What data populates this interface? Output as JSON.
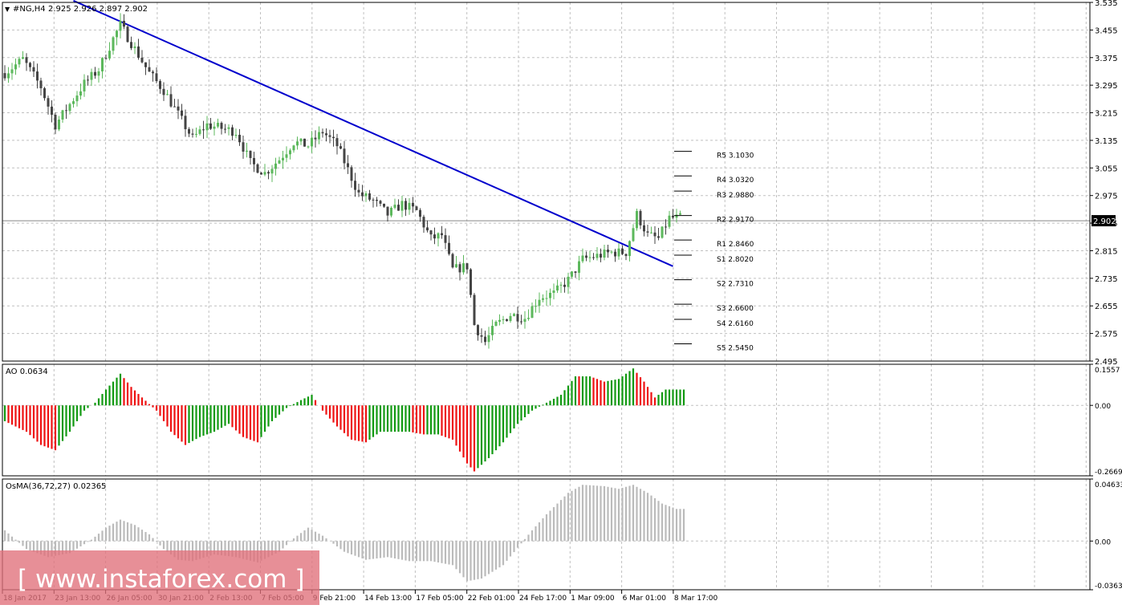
{
  "header": {
    "symbol_label": "#NG,H4",
    "ohlc_text": "2.925 2.926 2.897 2.902"
  },
  "watermark": {
    "text": "[ www.instaforex.com ]"
  },
  "colors": {
    "grid": "#c0c0c0",
    "trendline": "#0000cc",
    "bull": "#5cb85c",
    "bear": "#444444",
    "ao_up": "#119911",
    "ao_down": "#ee1111",
    "osma": "#bbbbbb",
    "watermark_bg": "#e0707a"
  },
  "chart_data": [
    {
      "type": "candlestick",
      "name": "price",
      "ylim": [
        2.495,
        3.535
      ],
      "y_ticks": [
        "3.535",
        "3.455",
        "3.375",
        "3.295",
        "3.215",
        "3.135",
        "3.055",
        "2.975",
        "2.895",
        "2.815",
        "2.735",
        "2.655",
        "2.575",
        "2.495"
      ],
      "current_price": "2.902",
      "x_tick_labels": [
        "18 Jan 2017",
        "23 Jan 13:00",
        "26 Jan 05:00",
        "30 Jan 21:00",
        "2 Feb 13:00",
        "7 Feb 05:00",
        "9 Feb 21:00",
        "14 Feb 13:00",
        "17 Feb 05:00",
        "22 Feb 01:00",
        "24 Feb 17:00",
        "1 Mar 09:00",
        "6 Mar 01:00",
        "8 Mar 17:00"
      ],
      "close_anchors": [
        [
          0,
          3.33
        ],
        [
          5,
          3.37
        ],
        [
          10,
          3.29
        ],
        [
          14,
          3.18
        ],
        [
          18,
          3.24
        ],
        [
          22,
          3.3
        ],
        [
          26,
          3.34
        ],
        [
          30,
          3.43
        ],
        [
          32,
          3.47
        ],
        [
          36,
          3.4
        ],
        [
          40,
          3.33
        ],
        [
          44,
          3.28
        ],
        [
          48,
          3.21
        ],
        [
          52,
          3.14
        ],
        [
          56,
          3.18
        ],
        [
          60,
          3.17
        ],
        [
          64,
          3.16
        ],
        [
          68,
          3.07
        ],
        [
          72,
          3.04
        ],
        [
          76,
          3.08
        ],
        [
          80,
          3.13
        ],
        [
          84,
          3.12
        ],
        [
          88,
          3.16
        ],
        [
          92,
          3.12
        ],
        [
          95,
          3.05
        ],
        [
          98,
          2.98
        ],
        [
          102,
          2.96
        ],
        [
          106,
          2.92
        ],
        [
          110,
          2.95
        ],
        [
          114,
          2.93
        ],
        [
          118,
          2.85
        ],
        [
          121,
          2.86
        ],
        [
          124,
          2.76
        ],
        [
          128,
          2.77
        ],
        [
          130,
          2.6
        ],
        [
          133,
          2.55
        ],
        [
          136,
          2.6
        ],
        [
          140,
          2.63
        ],
        [
          144,
          2.62
        ],
        [
          148,
          2.68
        ],
        [
          152,
          2.69
        ],
        [
          156,
          2.73
        ],
        [
          160,
          2.79
        ],
        [
          164,
          2.8
        ],
        [
          168,
          2.81
        ],
        [
          172,
          2.81
        ],
        [
          175,
          2.92
        ],
        [
          178,
          2.86
        ],
        [
          181,
          2.85
        ],
        [
          184,
          2.91
        ],
        [
          187,
          2.91
        ]
      ],
      "pivot_levels": [
        {
          "label": "R5",
          "value": 3.103
        },
        {
          "label": "R4",
          "value": 3.032
        },
        {
          "label": "R3",
          "value": 2.988
        },
        {
          "label": "R2",
          "value": 2.917
        },
        {
          "label": "R1",
          "value": 2.846
        },
        {
          "label": "S1",
          "value": 2.802
        },
        {
          "label": "S2",
          "value": 2.731
        },
        {
          "label": "S3",
          "value": 2.66
        },
        {
          "label": "S4",
          "value": 2.616
        },
        {
          "label": "S5",
          "value": 2.545
        }
      ],
      "pivot_texts": [
        "R5 3.1030",
        "R4 3.0320",
        "R3 2.9880",
        "R2 2.9170",
        "R1 2.8460",
        "S1 2.8020",
        "S2 2.7310",
        "S3 2.6600",
        "S4 2.6160",
        "S5 2.5450"
      ],
      "trendline": {
        "start": {
          "bar": 19,
          "price": 3.54
        },
        "end": {
          "bar": 185,
          "price": 2.77
        }
      }
    },
    {
      "type": "histogram",
      "name": "AO",
      "label": "AO 0.0634",
      "ylim": [
        -0.2669,
        0.1557
      ],
      "y_ticks": [
        "0.1557",
        "0.00",
        "-0.2669"
      ],
      "value_anchors": [
        [
          0,
          -0.06
        ],
        [
          6,
          -0.1
        ],
        [
          10,
          -0.15
        ],
        [
          14,
          -0.17
        ],
        [
          18,
          -0.1
        ],
        [
          22,
          -0.02
        ],
        [
          25,
          0.01
        ],
        [
          28,
          0.06
        ],
        [
          32,
          0.12
        ],
        [
          35,
          0.07
        ],
        [
          38,
          0.03
        ],
        [
          42,
          -0.02
        ],
        [
          46,
          -0.1
        ],
        [
          50,
          -0.15
        ],
        [
          54,
          -0.12
        ],
        [
          58,
          -0.1
        ],
        [
          62,
          -0.07
        ],
        [
          66,
          -0.12
        ],
        [
          70,
          -0.14
        ],
        [
          74,
          -0.06
        ],
        [
          78,
          -0.01
        ],
        [
          82,
          0.02
        ],
        [
          85,
          0.04
        ],
        [
          88,
          -0.02
        ],
        [
          92,
          -0.08
        ],
        [
          96,
          -0.13
        ],
        [
          100,
          -0.14
        ],
        [
          104,
          -0.1
        ],
        [
          108,
          -0.1
        ],
        [
          112,
          -0.1
        ],
        [
          116,
          -0.11
        ],
        [
          120,
          -0.11
        ],
        [
          124,
          -0.13
        ],
        [
          128,
          -0.22
        ],
        [
          130,
          -0.25
        ],
        [
          134,
          -0.2
        ],
        [
          138,
          -0.14
        ],
        [
          142,
          -0.07
        ],
        [
          146,
          -0.02
        ],
        [
          150,
          0.01
        ],
        [
          154,
          0.04
        ],
        [
          158,
          0.11
        ],
        [
          162,
          0.11
        ],
        [
          166,
          0.09
        ],
        [
          170,
          0.1
        ],
        [
          174,
          0.14
        ],
        [
          177,
          0.09
        ],
        [
          180,
          0.03
        ],
        [
          183,
          0.06
        ],
        [
          186,
          0.06
        ]
      ]
    },
    {
      "type": "histogram",
      "name": "OsMA",
      "label": "OsMA(36,72,27) 0.02365",
      "ylim": [
        -0.03637,
        0.04633
      ],
      "y_ticks": [
        "0.04633",
        "0.00",
        "-0.03637"
      ],
      "value_anchors": [
        [
          0,
          0.008
        ],
        [
          6,
          -0.006
        ],
        [
          12,
          -0.012
        ],
        [
          18,
          -0.009
        ],
        [
          24,
          0.001
        ],
        [
          28,
          0.01
        ],
        [
          32,
          0.016
        ],
        [
          36,
          0.012
        ],
        [
          40,
          0.005
        ],
        [
          44,
          -0.006
        ],
        [
          48,
          -0.014
        ],
        [
          52,
          -0.015
        ],
        [
          58,
          -0.01
        ],
        [
          64,
          -0.012
        ],
        [
          70,
          -0.016
        ],
        [
          76,
          -0.008
        ],
        [
          80,
          0.002
        ],
        [
          84,
          0.01
        ],
        [
          88,
          0.004
        ],
        [
          94,
          -0.008
        ],
        [
          100,
          -0.014
        ],
        [
          106,
          -0.012
        ],
        [
          112,
          -0.015
        ],
        [
          118,
          -0.015
        ],
        [
          124,
          -0.018
        ],
        [
          128,
          -0.03
        ],
        [
          132,
          -0.028
        ],
        [
          138,
          -0.018
        ],
        [
          142,
          -0.005
        ],
        [
          146,
          0.008
        ],
        [
          150,
          0.02
        ],
        [
          156,
          0.036
        ],
        [
          160,
          0.042
        ],
        [
          166,
          0.041
        ],
        [
          170,
          0.039
        ],
        [
          174,
          0.042
        ],
        [
          178,
          0.036
        ],
        [
          182,
          0.028
        ],
        [
          186,
          0.024
        ]
      ]
    }
  ]
}
